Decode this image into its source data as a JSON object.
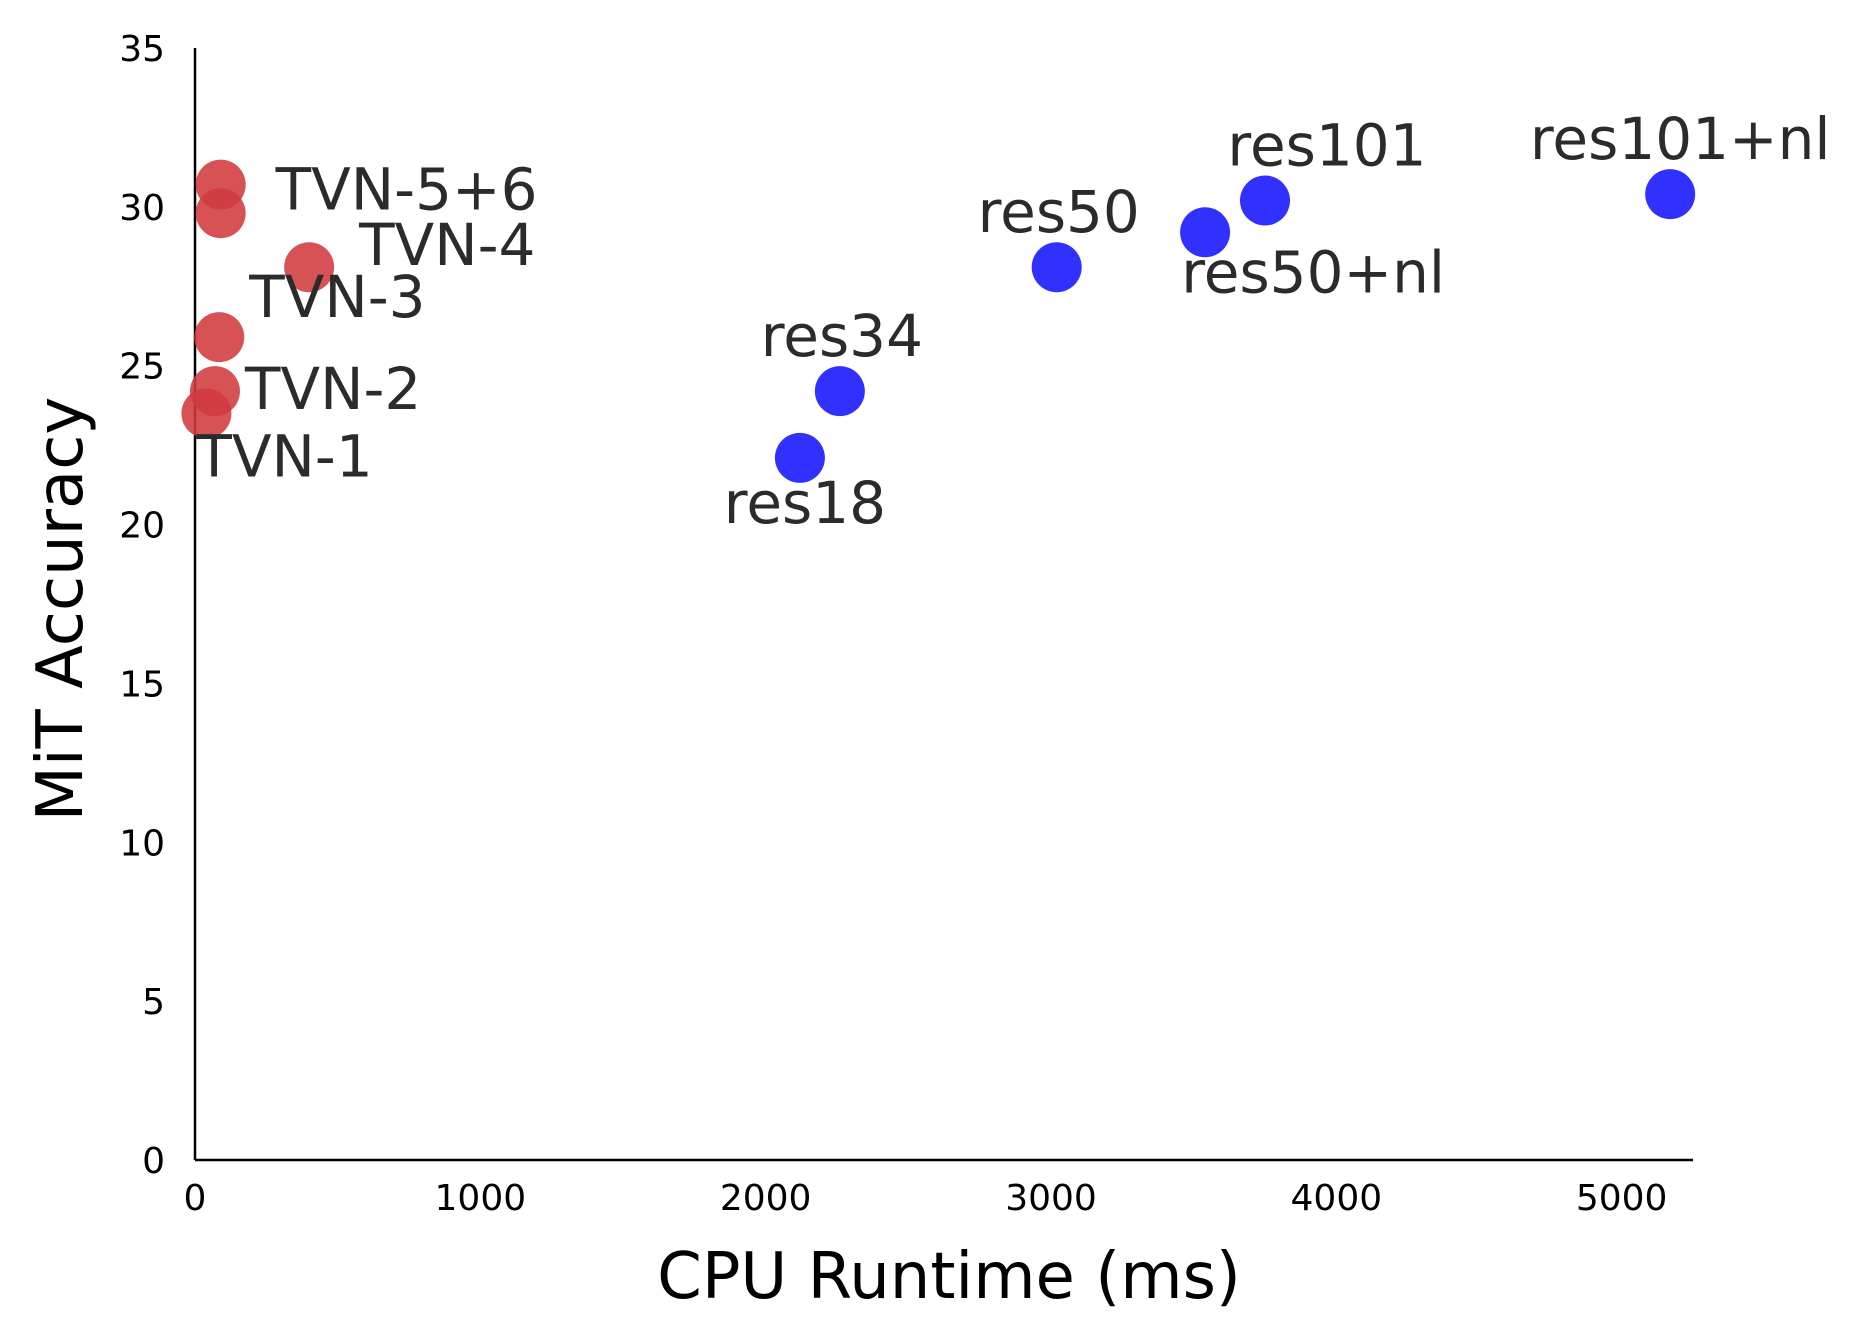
{
  "chart_data": {
    "type": "scatter",
    "xlabel": "CPU Runtime (ms)",
    "ylabel": "MiT Accuracy",
    "xlim": [
      0,
      5250
    ],
    "ylim": [
      0,
      35
    ],
    "x_ticks": [
      0,
      1000,
      2000,
      3000,
      4000,
      5000
    ],
    "x_tick_labels": [
      "0",
      "1000",
      "2000",
      "3000",
      "4000",
      "5000"
    ],
    "y_ticks": [
      0,
      5,
      10,
      15,
      20,
      25,
      30,
      35
    ],
    "y_tick_labels": [
      "0",
      "5",
      "10",
      "15",
      "20",
      "25",
      "30",
      "35"
    ],
    "grid": false,
    "series": [
      {
        "color": "#d03a3e",
        "points": [
          {
            "label": "TVN-1",
            "x": 40,
            "y": 23.5
          },
          {
            "label": "TVN-2",
            "x": 70,
            "y": 24.2
          },
          {
            "label": "TVN-3",
            "x": 85,
            "y": 25.9
          },
          {
            "label": "TVN-4",
            "x": 400,
            "y": 28.1
          },
          {
            "label": "TVN-5+6",
            "x": 90,
            "y": 30.7
          },
          {
            "label": "",
            "x": 90,
            "y": 29.8
          }
        ]
      },
      {
        "color": "#2626ff",
        "points": [
          {
            "label": "res18",
            "x": 2120,
            "y": 22.1
          },
          {
            "label": "res34",
            "x": 2260,
            "y": 24.2
          },
          {
            "label": "res50",
            "x": 3020,
            "y": 28.1
          },
          {
            "label": "res50+nl",
            "x": 3540,
            "y": 29.2
          },
          {
            "label": "res101",
            "x": 3750,
            "y": 30.2
          },
          {
            "label": "res101+nl",
            "x": 5170,
            "y": 30.4
          }
        ]
      }
    ]
  }
}
